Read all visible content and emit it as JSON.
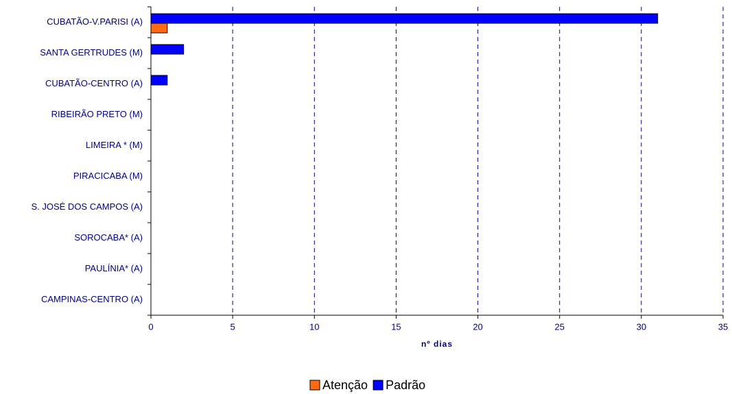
{
  "chart_data": {
    "type": "bar",
    "orientation": "horizontal",
    "categories": [
      "CUBATÃO-V.PARISI (A)",
      "SANTA GERTRUDES (M)",
      "CUBATÃO-CENTRO (A)",
      "RIBEIRÃO PRETO (M)",
      "LIMEIRA * (M)",
      "PIRACICABA (M)",
      "S. JOSÉ DOS CAMPOS (A)",
      "SOROCABA* (A)",
      "PAULÍNIA* (A)",
      "CAMPINAS-CENTRO (A)"
    ],
    "series": [
      {
        "name": "Atenção",
        "color": "#ff6a13",
        "values": [
          1,
          0,
          0,
          0,
          0,
          0,
          0,
          0,
          0,
          0
        ]
      },
      {
        "name": "Padrão",
        "color": "#0000ff",
        "values": [
          31,
          2,
          1,
          0,
          0,
          0,
          0,
          0,
          0,
          0
        ]
      }
    ],
    "xlabel": "nº dias",
    "xlim": [
      0,
      35
    ],
    "xticks": [
      0,
      5,
      10,
      15,
      20,
      25,
      30,
      35
    ],
    "grid": true,
    "legend": "bottom"
  }
}
